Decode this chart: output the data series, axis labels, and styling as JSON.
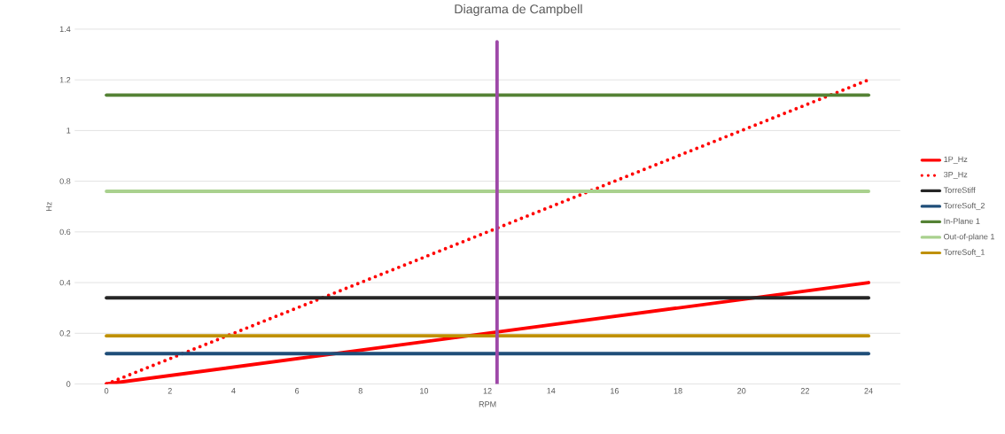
{
  "chart_data": {
    "type": "line",
    "title": "Diagrama de Campbell",
    "xlabel": "RPM",
    "ylabel": "Hz",
    "xlim": [
      -1,
      25
    ],
    "ylim": [
      0,
      1.4
    ],
    "xticks": [
      0,
      2,
      4,
      6,
      8,
      10,
      12,
      14,
      16,
      18,
      20,
      22,
      24
    ],
    "yticks": [
      0,
      0.2,
      0.4,
      0.6,
      0.8,
      1,
      1.2,
      1.4
    ],
    "grid": "y",
    "legend": "right",
    "marker": "none",
    "series": [
      {
        "name": "1P_Hz",
        "color": "#ff0000",
        "x": [
          0,
          24
        ],
        "values": [
          0,
          0.4
        ],
        "line_style": "solid"
      },
      {
        "name": "3P_Hz",
        "color": "#ff0000",
        "x": [
          0,
          24
        ],
        "values": [
          0,
          1.2
        ],
        "line_style": "dotted"
      },
      {
        "name": "TorreStiff",
        "color": "#262626",
        "x": [
          0,
          24
        ],
        "values": [
          0.34,
          0.34
        ],
        "line_style": "solid"
      },
      {
        "name": "TorreSoft_2",
        "color": "#1f4e79",
        "x": [
          0,
          24
        ],
        "values": [
          0.12,
          0.12
        ],
        "line_style": "solid"
      },
      {
        "name": "In-Plane 1",
        "color": "#548235",
        "x": [
          0,
          24
        ],
        "values": [
          1.14,
          1.14
        ],
        "line_style": "solid"
      },
      {
        "name": "Out-of-plane 1",
        "color": "#a9d18e",
        "x": [
          0,
          24
        ],
        "values": [
          0.76,
          0.76
        ],
        "line_style": "solid"
      },
      {
        "name": "TorreSoft_1",
        "color": "#bf9000",
        "x": [
          0,
          24
        ],
        "values": [
          0.19,
          0.19
        ],
        "line_style": "solid"
      },
      {
        "color": "#9e48a8",
        "x": [
          12.3,
          12.3
        ],
        "values": [
          0,
          1.35
        ],
        "line_style": "solid"
      }
    ]
  }
}
